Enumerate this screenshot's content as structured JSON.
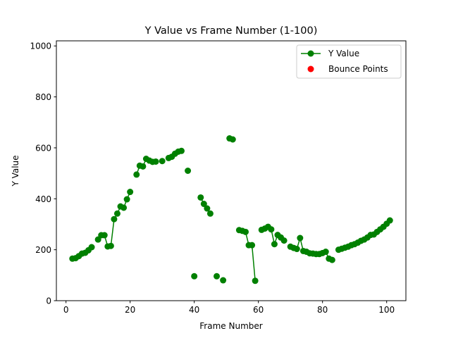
{
  "chart_data": {
    "type": "line",
    "title": "Y Value vs Frame Number (1-100)",
    "xlabel": "Frame Number",
    "ylabel": "Y Value",
    "xlim": [
      -3,
      106
    ],
    "ylim": [
      0,
      1020
    ],
    "xticks": [
      0,
      20,
      40,
      60,
      80,
      100
    ],
    "yticks": [
      0,
      200,
      400,
      600,
      800,
      1000
    ],
    "grid": false,
    "legend_position": "top-right",
    "series": [
      {
        "name": "Y Value",
        "color": "#008000",
        "style": "line-with-circle-markers",
        "points": [
          [
            2,
            165
          ],
          [
            3,
            167
          ],
          [
            4,
            175
          ],
          [
            5,
            185
          ],
          [
            6,
            188
          ],
          [
            7,
            198
          ],
          [
            8,
            210
          ],
          [
            10,
            240
          ],
          [
            11,
            257
          ],
          [
            12,
            257
          ],
          [
            13,
            213
          ],
          [
            14,
            215
          ],
          [
            15,
            320
          ],
          [
            16,
            342
          ],
          [
            17,
            370
          ],
          [
            18,
            365
          ],
          [
            19,
            398
          ],
          [
            20,
            427
          ],
          [
            22,
            495
          ],
          [
            23,
            530
          ],
          [
            24,
            527
          ],
          [
            25,
            557
          ],
          [
            26,
            550
          ],
          [
            27,
            545
          ],
          [
            28,
            546
          ],
          [
            30,
            548
          ],
          [
            32,
            560
          ],
          [
            33,
            565
          ],
          [
            34,
            577
          ],
          [
            35,
            585
          ],
          [
            36,
            588
          ],
          [
            38,
            510
          ],
          [
            40,
            96
          ],
          [
            42,
            405
          ],
          [
            43,
            380
          ],
          [
            44,
            362
          ],
          [
            45,
            342
          ],
          [
            47,
            96
          ],
          [
            49,
            80
          ],
          [
            51,
            637
          ],
          [
            52,
            633
          ],
          [
            54,
            277
          ],
          [
            55,
            274
          ],
          [
            56,
            270
          ],
          [
            57,
            218
          ],
          [
            58,
            218
          ],
          [
            59,
            78
          ],
          [
            61,
            278
          ],
          [
            62,
            283
          ],
          [
            63,
            290
          ],
          [
            64,
            280
          ],
          [
            65,
            222
          ],
          [
            66,
            258
          ],
          [
            67,
            248
          ],
          [
            68,
            236
          ],
          [
            70,
            212
          ],
          [
            71,
            207
          ],
          [
            72,
            203
          ],
          [
            73,
            246
          ],
          [
            74,
            195
          ],
          [
            75,
            192
          ],
          [
            76,
            186
          ],
          [
            77,
            185
          ],
          [
            78,
            183
          ],
          [
            79,
            183
          ],
          [
            80,
            187
          ],
          [
            81,
            192
          ],
          [
            82,
            165
          ],
          [
            83,
            160
          ],
          [
            85,
            200
          ],
          [
            86,
            204
          ],
          [
            87,
            208
          ],
          [
            88,
            212
          ],
          [
            89,
            218
          ],
          [
            90,
            222
          ],
          [
            91,
            228
          ],
          [
            92,
            235
          ],
          [
            93,
            240
          ],
          [
            94,
            248
          ],
          [
            95,
            258
          ],
          [
            96,
            260
          ],
          [
            97,
            270
          ],
          [
            98,
            280
          ],
          [
            99,
            290
          ],
          [
            100,
            302
          ],
          [
            101,
            315
          ]
        ]
      },
      {
        "name": "Bounce Points",
        "color": "#ff0000",
        "style": "scatter",
        "points": []
      }
    ]
  }
}
